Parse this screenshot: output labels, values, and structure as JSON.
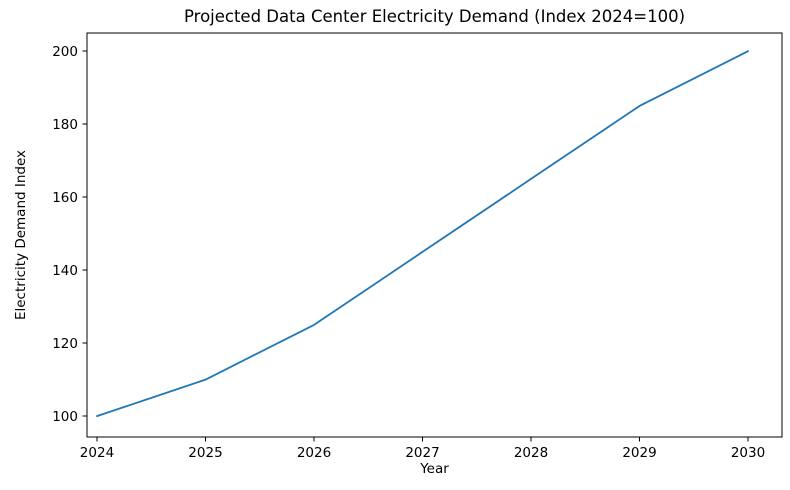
{
  "chart_data": {
    "type": "line",
    "title": "Projected Data Center Electricity Demand (Index 2024=100)",
    "xlabel": "Year",
    "ylabel": "Electricity Demand Index",
    "x": [
      2024,
      2025,
      2026,
      2027,
      2028,
      2029,
      2030
    ],
    "y": [
      100,
      110,
      125,
      145,
      165,
      185,
      200
    ],
    "xticks": [
      2024,
      2025,
      2026,
      2027,
      2028,
      2029,
      2030
    ],
    "yticks": [
      100,
      120,
      140,
      160,
      180,
      200
    ],
    "xlim": [
      2023.908,
      2030.313
    ],
    "ylim": [
      94.28,
      204.99
    ],
    "grid": false,
    "legend_position": "none",
    "line_color": "#1f77b4",
    "axis_color": "#000000",
    "background_color": "#ffffff"
  }
}
